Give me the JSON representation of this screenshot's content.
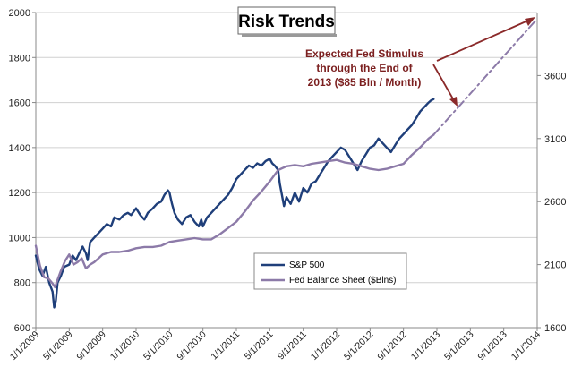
{
  "chart_data": {
    "type": "line",
    "title": "Risk Trends",
    "annotation": [
      "Expected Fed Stimulus",
      "through the End of",
      "2013 ($85 Bln / Month)"
    ],
    "left_axis": {
      "min": 600,
      "max": 2000,
      "ticks": [
        "2000",
        "1800",
        "1600",
        "1400",
        "1200",
        "1000",
        "800",
        "600"
      ]
    },
    "right_axis": {
      "min": 1600,
      "max": 4100,
      "ticks": [
        "3600",
        "3100",
        "2600",
        "2100",
        "1600"
      ]
    },
    "x_categories": [
      "1/1/2009",
      "5/1/2009",
      "9/1/2009",
      "1/1/2010",
      "5/1/2010",
      "9/1/2010",
      "1/1/2011",
      "5/1/2011",
      "9/1/2011",
      "1/1/2012",
      "5/1/2012",
      "9/1/2012",
      "1/1/2013",
      "5/1/2013",
      "9/1/2013",
      "1/1/2014"
    ],
    "x_range_months": [
      0,
      60
    ],
    "legend": [
      "S&P 500",
      "Fed Balance Sheet ($Blns)"
    ],
    "colors": {
      "sp500": "#1f3f7a",
      "fed": "#8c7aa8",
      "arrow": "#8b2a2a",
      "grid": "#d0d0d0",
      "axis": "#888888"
    },
    "series": [
      {
        "name": "S&P 500",
        "axis": "left",
        "points": [
          [
            0,
            920
          ],
          [
            0.4,
            860
          ],
          [
            0.8,
            830
          ],
          [
            1.2,
            870
          ],
          [
            1.6,
            800
          ],
          [
            2,
            760
          ],
          [
            2.2,
            690
          ],
          [
            2.4,
            720
          ],
          [
            2.6,
            800
          ],
          [
            3,
            830
          ],
          [
            3.4,
            870
          ],
          [
            4,
            880
          ],
          [
            4.4,
            920
          ],
          [
            4.8,
            900
          ],
          [
            5.2,
            930
          ],
          [
            5.6,
            960
          ],
          [
            6,
            930
          ],
          [
            6.2,
            900
          ],
          [
            6.5,
            980
          ],
          [
            7,
            1000
          ],
          [
            7.5,
            1020
          ],
          [
            8,
            1040
          ],
          [
            8.5,
            1060
          ],
          [
            9,
            1050
          ],
          [
            9.4,
            1090
          ],
          [
            10,
            1080
          ],
          [
            10.5,
            1100
          ],
          [
            11,
            1110
          ],
          [
            11.4,
            1100
          ],
          [
            12,
            1130
          ],
          [
            12.5,
            1100
          ],
          [
            13,
            1080
          ],
          [
            13.4,
            1110
          ],
          [
            14,
            1130
          ],
          [
            14.5,
            1150
          ],
          [
            15,
            1160
          ],
          [
            15.4,
            1190
          ],
          [
            15.8,
            1210
          ],
          [
            16,
            1200
          ],
          [
            16.3,
            1150
          ],
          [
            16.6,
            1110
          ],
          [
            17,
            1080
          ],
          [
            17.5,
            1060
          ],
          [
            18,
            1090
          ],
          [
            18.5,
            1100
          ],
          [
            19,
            1070
          ],
          [
            19.5,
            1050
          ],
          [
            19.8,
            1080
          ],
          [
            20,
            1050
          ],
          [
            20.5,
            1090
          ],
          [
            21,
            1110
          ],
          [
            21.5,
            1130
          ],
          [
            22,
            1150
          ],
          [
            22.5,
            1170
          ],
          [
            23,
            1190
          ],
          [
            23.5,
            1220
          ],
          [
            24,
            1260
          ],
          [
            24.5,
            1280
          ],
          [
            25,
            1300
          ],
          [
            25.5,
            1320
          ],
          [
            26,
            1310
          ],
          [
            26.5,
            1330
          ],
          [
            27,
            1320
          ],
          [
            27.5,
            1340
          ],
          [
            28,
            1350
          ],
          [
            28.3,
            1330
          ],
          [
            28.6,
            1320
          ],
          [
            29,
            1300
          ],
          [
            29.2,
            1240
          ],
          [
            29.4,
            1200
          ],
          [
            29.7,
            1140
          ],
          [
            30,
            1180
          ],
          [
            30.5,
            1150
          ],
          [
            31,
            1200
          ],
          [
            31.5,
            1160
          ],
          [
            32,
            1220
          ],
          [
            32.5,
            1200
          ],
          [
            33,
            1240
          ],
          [
            33.5,
            1250
          ],
          [
            34,
            1280
          ],
          [
            34.5,
            1310
          ],
          [
            35,
            1340
          ],
          [
            35.5,
            1360
          ],
          [
            36,
            1380
          ],
          [
            36.5,
            1400
          ],
          [
            37,
            1390
          ],
          [
            37.5,
            1360
          ],
          [
            38,
            1330
          ],
          [
            38.5,
            1300
          ],
          [
            39,
            1340
          ],
          [
            39.5,
            1370
          ],
          [
            40,
            1400
          ],
          [
            40.5,
            1410
          ],
          [
            41,
            1440
          ],
          [
            41.5,
            1420
          ],
          [
            42,
            1400
          ],
          [
            42.5,
            1380
          ],
          [
            43,
            1410
          ],
          [
            43.5,
            1440
          ],
          [
            44,
            1460
          ],
          [
            44.5,
            1480
          ],
          [
            45,
            1500
          ],
          [
            45.5,
            1530
          ],
          [
            46,
            1560
          ],
          [
            46.5,
            1580
          ],
          [
            47,
            1600
          ],
          [
            47.3,
            1610
          ],
          [
            47.6,
            1615
          ]
        ]
      },
      {
        "name": "Fed Balance Sheet ($Blns)",
        "axis": "right",
        "points": [
          [
            0,
            2250
          ],
          [
            0.5,
            2090
          ],
          [
            1,
            2000
          ],
          [
            1.5,
            1990
          ],
          [
            2,
            1950
          ],
          [
            2.3,
            1920
          ],
          [
            2.6,
            1980
          ],
          [
            3,
            2050
          ],
          [
            3.5,
            2130
          ],
          [
            4,
            2180
          ],
          [
            4.5,
            2100
          ],
          [
            5,
            2120
          ],
          [
            5.5,
            2150
          ],
          [
            6,
            2070
          ],
          [
            6.5,
            2100
          ],
          [
            7,
            2120
          ],
          [
            7.5,
            2150
          ],
          [
            8,
            2180
          ],
          [
            8.5,
            2190
          ],
          [
            9,
            2200
          ],
          [
            10,
            2200
          ],
          [
            11,
            2210
          ],
          [
            12,
            2230
          ],
          [
            13,
            2240
          ],
          [
            14,
            2240
          ],
          [
            15,
            2250
          ],
          [
            16,
            2280
          ],
          [
            17,
            2290
          ],
          [
            18,
            2300
          ],
          [
            19,
            2310
          ],
          [
            20,
            2300
          ],
          [
            21,
            2300
          ],
          [
            22,
            2340
          ],
          [
            23,
            2390
          ],
          [
            24,
            2440
          ],
          [
            25,
            2520
          ],
          [
            26,
            2610
          ],
          [
            27,
            2680
          ],
          [
            28,
            2760
          ],
          [
            29,
            2850
          ],
          [
            30,
            2880
          ],
          [
            31,
            2890
          ],
          [
            32,
            2880
          ],
          [
            33,
            2900
          ],
          [
            34,
            2910
          ],
          [
            35,
            2920
          ],
          [
            36,
            2930
          ],
          [
            37,
            2910
          ],
          [
            38,
            2900
          ],
          [
            39,
            2880
          ],
          [
            40,
            2860
          ],
          [
            41,
            2850
          ],
          [
            42,
            2860
          ],
          [
            43,
            2880
          ],
          [
            44,
            2900
          ],
          [
            45,
            2970
          ],
          [
            46,
            3030
          ],
          [
            47,
            3100
          ],
          [
            47.6,
            3130
          ]
        ]
      },
      {
        "name": "Expected Fed Stimulus projection",
        "axis": "right",
        "dashed": true,
        "points": [
          [
            47.6,
            3130
          ],
          [
            60,
            4050
          ]
        ]
      }
    ]
  }
}
